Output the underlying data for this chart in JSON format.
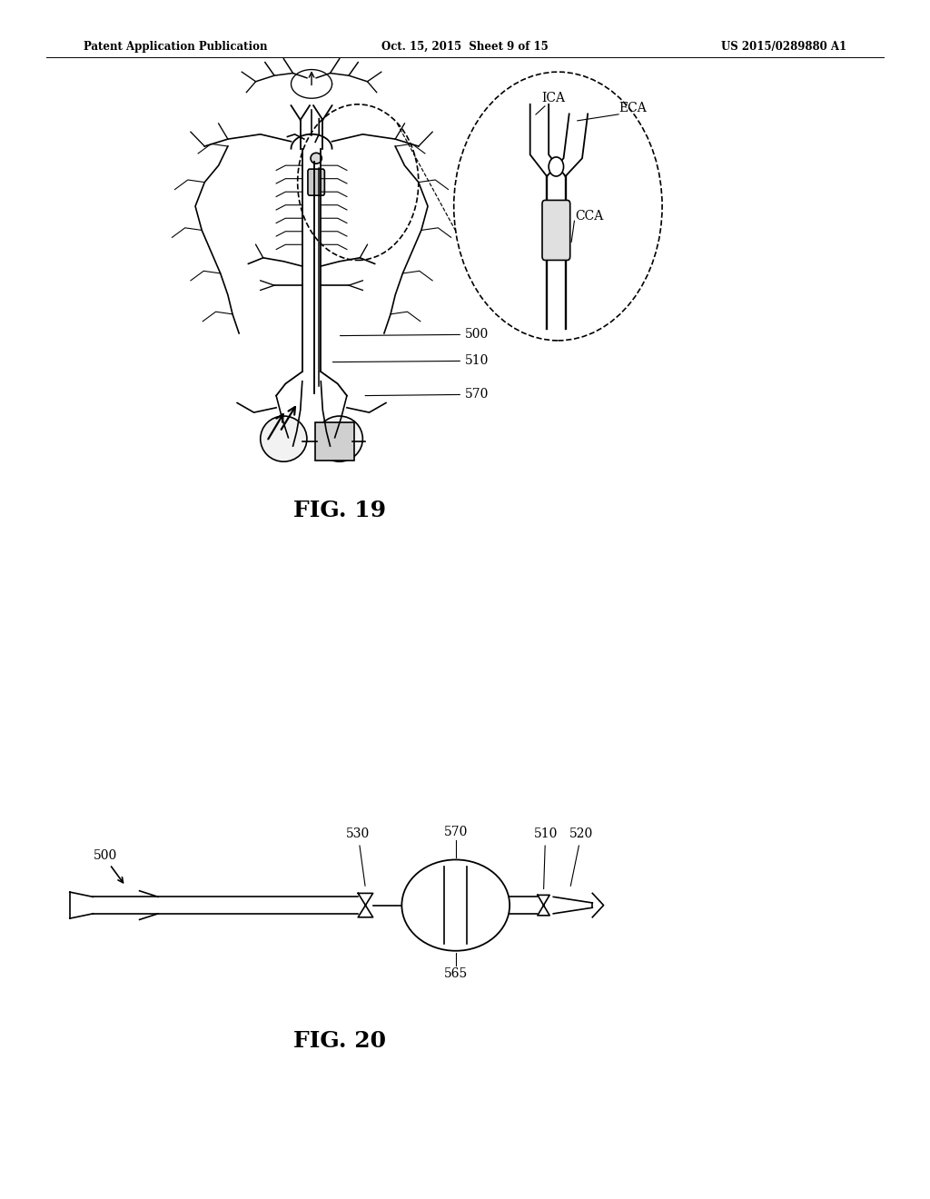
{
  "background_color": "#ffffff",
  "header_left": "Patent Application Publication",
  "header_center": "Oct. 15, 2015  Sheet 9 of 15",
  "header_right": "US 2015/0289880 A1",
  "fig19_label": "FIG. 19",
  "fig20_label": "FIG. 20",
  "lw": 1.2,
  "lw2": 1.3,
  "color": "black"
}
